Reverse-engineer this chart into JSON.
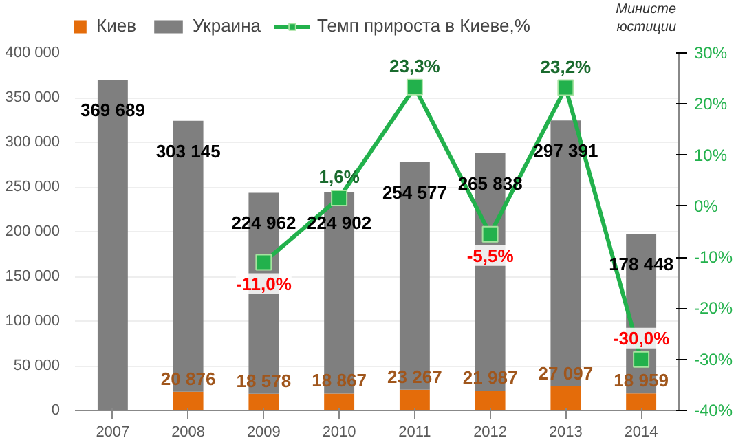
{
  "chart_data": {
    "type": "bar",
    "stacked": true,
    "categories": [
      "2007",
      "2008",
      "2009",
      "2010",
      "2011",
      "2012",
      "2013",
      "2014"
    ],
    "series": [
      {
        "name": "Киев",
        "color": "#e46c0a",
        "values": [
          null,
          20876,
          18578,
          18867,
          23267,
          21987,
          27097,
          18959
        ],
        "value_labels": [
          null,
          "20 876",
          "18 578",
          "18 867",
          "23 267",
          "21 987",
          "27 097",
          "18 959"
        ]
      },
      {
        "name": "Украина",
        "color": "#7f7f7f",
        "values": [
          369689,
          303145,
          224962,
          224902,
          254577,
          265838,
          297391,
          178448
        ],
        "value_labels": [
          "369 689",
          "303 145",
          "224 962",
          "224 902",
          "254 577",
          "265 838",
          "297 391",
          "178 448"
        ]
      },
      {
        "name": "Темп прироста в Киеве,%",
        "type": "line",
        "axis": "y2",
        "color": "#22b14c",
        "marker": "square",
        "values": [
          null,
          null,
          -11.0,
          1.6,
          23.3,
          -5.5,
          23.2,
          -30.0
        ],
        "value_labels": [
          null,
          null,
          "-11,0%",
          "1,6%",
          "23,3%",
          "-5,5%",
          "23,2%",
          "-30,0%"
        ]
      }
    ],
    "ylim": [
      0,
      400000
    ],
    "yticks": [
      {
        "value": 0,
        "label": "0"
      },
      {
        "value": 50000,
        "label": "50 000"
      },
      {
        "value": 100000,
        "label": "100 000"
      },
      {
        "value": 150000,
        "label": "150 000"
      },
      {
        "value": 200000,
        "label": "200 000"
      },
      {
        "value": 250000,
        "label": "250 000"
      },
      {
        "value": 300000,
        "label": "300 000"
      },
      {
        "value": 350000,
        "label": "350 000"
      },
      {
        "value": 400000,
        "label": "400 000"
      }
    ],
    "y2lim": [
      -40,
      30
    ],
    "y2ticks": [
      {
        "value": -40,
        "label": "-40%"
      },
      {
        "value": -30,
        "label": "-30%"
      },
      {
        "value": -20,
        "label": "-20%"
      },
      {
        "value": -10,
        "label": "-10%"
      },
      {
        "value": 0,
        "label": "0%"
      },
      {
        "value": 10,
        "label": "10%"
      },
      {
        "value": 20,
        "label": "20%"
      },
      {
        "value": 30,
        "label": "30%"
      }
    ],
    "grid": "y",
    "legend": "top",
    "annotations": [
      "Министе",
      "юстиции"
    ]
  }
}
